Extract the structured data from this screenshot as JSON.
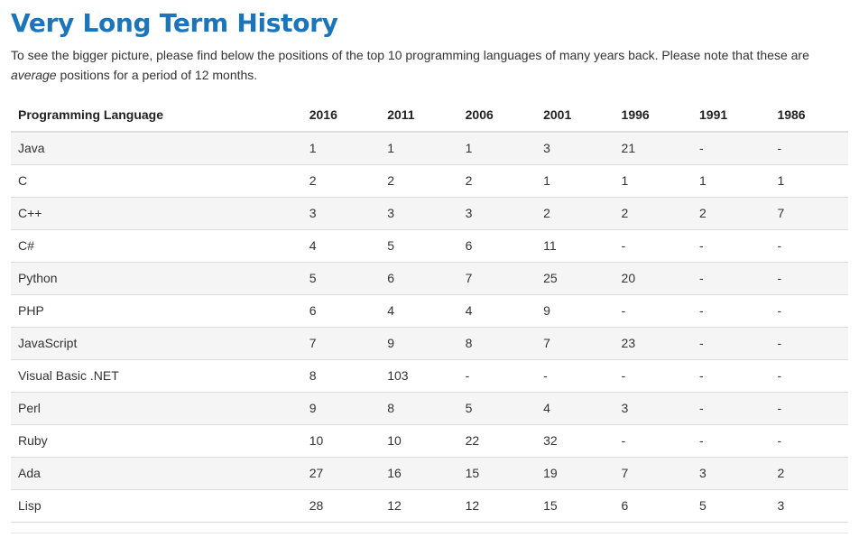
{
  "title": "Very Long Term History",
  "intro": {
    "before": "To see the bigger picture, please find below the positions of the top 10 programming languages of many years back. Please note that these are ",
    "emphasis": "average",
    "after": " positions for a period of 12 months."
  },
  "table": {
    "headers": [
      "Programming Language",
      "2016",
      "2011",
      "2006",
      "2001",
      "1996",
      "1991",
      "1986"
    ],
    "rows": [
      [
        "Java",
        "1",
        "1",
        "1",
        "3",
        "21",
        "-",
        "-"
      ],
      [
        "C",
        "2",
        "2",
        "2",
        "1",
        "1",
        "1",
        "1"
      ],
      [
        "C++",
        "3",
        "3",
        "3",
        "2",
        "2",
        "2",
        "7"
      ],
      [
        "C#",
        "4",
        "5",
        "6",
        "11",
        "-",
        "-",
        "-"
      ],
      [
        "Python",
        "5",
        "6",
        "7",
        "25",
        "20",
        "-",
        "-"
      ],
      [
        "PHP",
        "6",
        "4",
        "4",
        "9",
        "-",
        "-",
        "-"
      ],
      [
        "JavaScript",
        "7",
        "9",
        "8",
        "7",
        "23",
        "-",
        "-"
      ],
      [
        "Visual Basic .NET",
        "8",
        "103",
        "-",
        "-",
        "-",
        "-",
        "-"
      ],
      [
        "Perl",
        "9",
        "8",
        "5",
        "4",
        "3",
        "-",
        "-"
      ],
      [
        "Ruby",
        "10",
        "10",
        "22",
        "32",
        "-",
        "-",
        "-"
      ],
      [
        "Ada",
        "27",
        "16",
        "15",
        "19",
        "7",
        "3",
        "2"
      ],
      [
        "Lisp",
        "28",
        "12",
        "12",
        "15",
        "6",
        "5",
        "3"
      ]
    ]
  },
  "colors": {
    "title": "#1b75bb",
    "stripe": "#f5f5f5",
    "rule": "#dddddd"
  }
}
